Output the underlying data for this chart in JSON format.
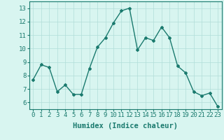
{
  "x": [
    0,
    1,
    2,
    3,
    4,
    5,
    6,
    7,
    8,
    9,
    10,
    11,
    12,
    13,
    14,
    15,
    16,
    17,
    18,
    19,
    20,
    21,
    22,
    23
  ],
  "y": [
    7.7,
    8.8,
    8.6,
    6.8,
    7.3,
    6.6,
    6.6,
    8.5,
    10.1,
    10.8,
    11.9,
    12.8,
    13.0,
    9.9,
    10.8,
    10.6,
    11.6,
    10.8,
    8.7,
    8.2,
    6.8,
    6.5,
    6.7,
    5.7
  ],
  "line_color": "#1a7a6e",
  "marker": "D",
  "markersize": 2,
  "linewidth": 1.0,
  "bg_color": "#d8f5f0",
  "grid_color": "#b0ddd8",
  "xlabel": "Humidex (Indice chaleur)",
  "xlim": [
    -0.5,
    23.5
  ],
  "ylim": [
    5.5,
    13.5
  ],
  "yticks": [
    6,
    7,
    8,
    9,
    10,
    11,
    12,
    13
  ],
  "xticks": [
    0,
    1,
    2,
    3,
    4,
    5,
    6,
    7,
    8,
    9,
    10,
    11,
    12,
    13,
    14,
    15,
    16,
    17,
    18,
    19,
    20,
    21,
    22,
    23
  ],
  "xlabel_fontsize": 7.5,
  "tick_fontsize": 6.5
}
